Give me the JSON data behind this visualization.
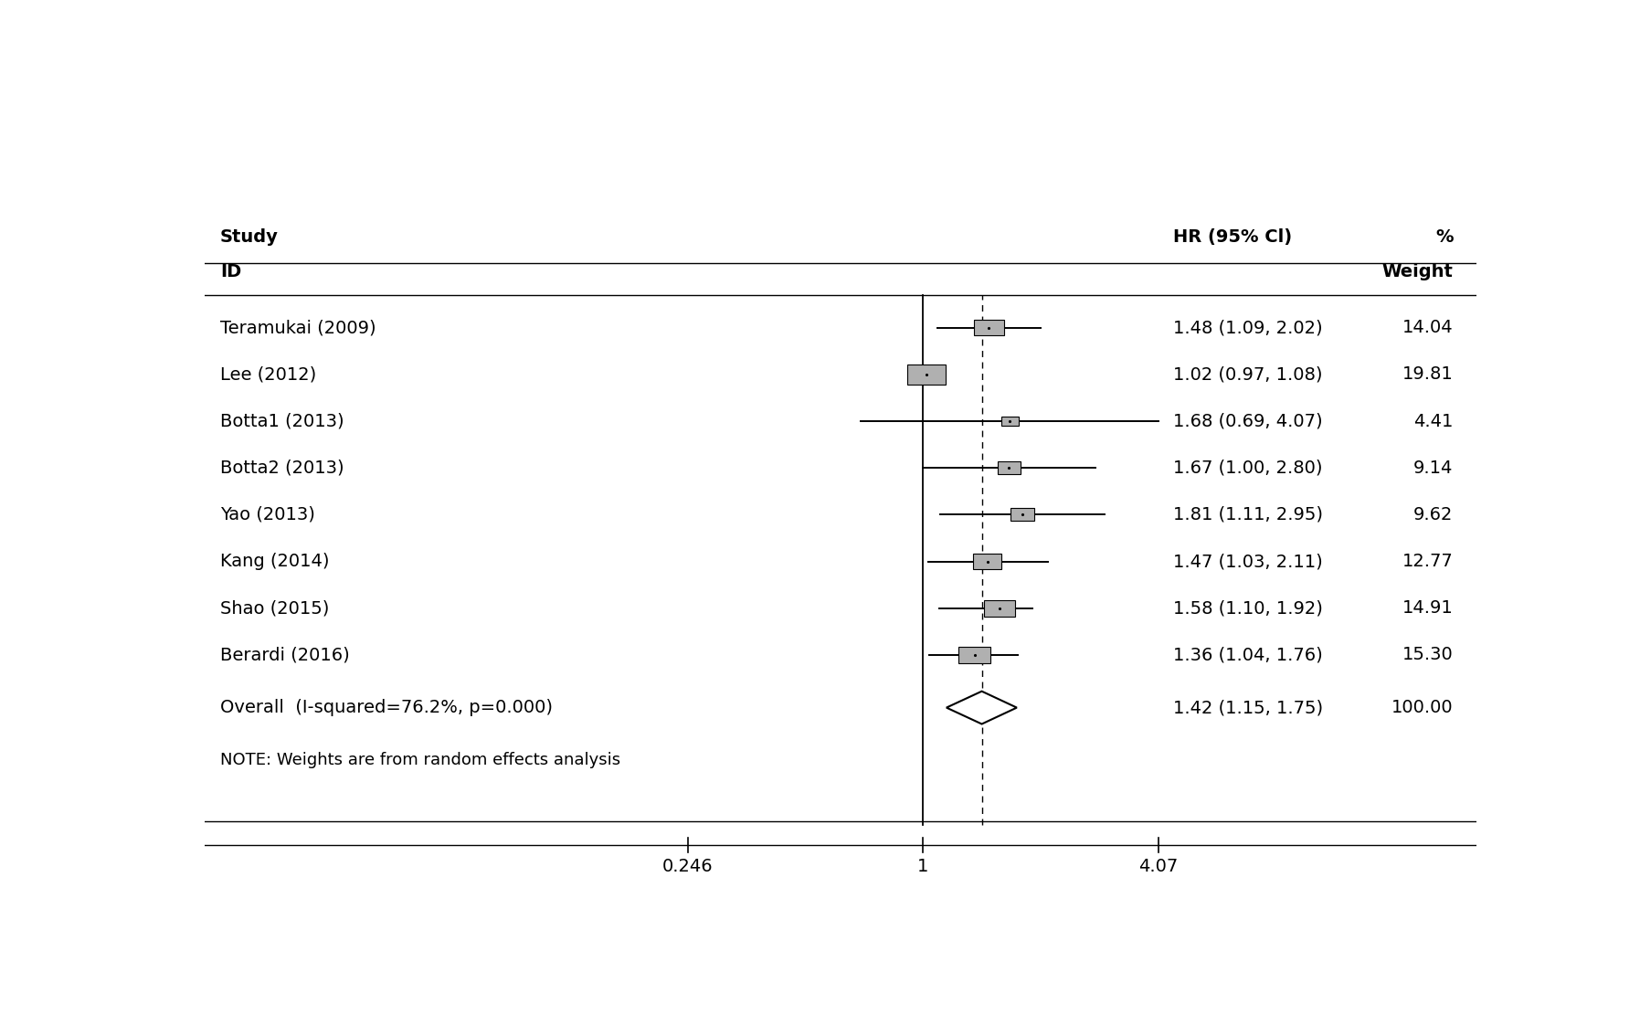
{
  "studies": [
    {
      "label": "Teramukai (2009)",
      "hr": 1.48,
      "ci_low": 1.09,
      "ci_high": 2.02,
      "weight_text": "14.04",
      "weight": 14.04
    },
    {
      "label": "Lee (2012)",
      "hr": 1.02,
      "ci_low": 0.97,
      "ci_high": 1.08,
      "weight_text": "19.81",
      "weight": 19.81
    },
    {
      "label": "Botta1 (2013)",
      "hr": 1.68,
      "ci_low": 0.69,
      "ci_high": 4.07,
      "weight_text": "4.41",
      "weight": 4.41
    },
    {
      "label": "Botta2 (2013)",
      "hr": 1.67,
      "ci_low": 1.0,
      "ci_high": 2.8,
      "weight_text": "9.14",
      "weight": 9.14
    },
    {
      "label": "Yao (2013)",
      "hr": 1.81,
      "ci_low": 1.11,
      "ci_high": 2.95,
      "weight_text": "9.62",
      "weight": 9.62
    },
    {
      "label": "Kang (2014)",
      "hr": 1.47,
      "ci_low": 1.03,
      "ci_high": 2.11,
      "weight_text": "12.77",
      "weight": 12.77
    },
    {
      "label": "Shao (2015)",
      "hr": 1.58,
      "ci_low": 1.1,
      "ci_high": 1.92,
      "weight_text": "14.91",
      "weight": 14.91
    },
    {
      "label": "Berardi (2016)",
      "hr": 1.36,
      "ci_low": 1.04,
      "ci_high": 1.76,
      "weight_text": "15.30",
      "weight": 15.3
    }
  ],
  "overall": {
    "label": "Overall  (I-squared=76.2%, p=0.000)",
    "hr": 1.42,
    "ci_low": 1.15,
    "ci_high": 1.75,
    "weight_text": "100.00"
  },
  "note": "NOTE: Weights are from random effects analysis",
  "x_ticks_val": [
    0.246,
    1.0,
    4.07
  ],
  "x_tick_labels": [
    "0.246",
    "1",
    "4.07"
  ],
  "bg_color": "#ffffff",
  "box_color": "#b0b0b0",
  "line_color": "#000000",
  "text_color": "#000000",
  "fontsize": 14,
  "fontsize_bold": 14
}
